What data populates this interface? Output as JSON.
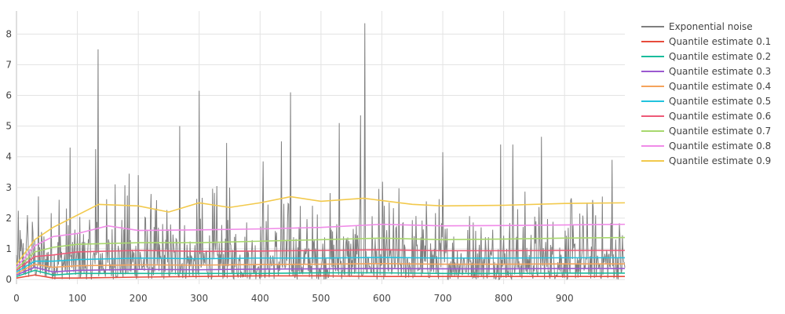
{
  "chart_data": {
    "type": "line",
    "title": "",
    "xlabel": "",
    "ylabel": "",
    "xlim": [
      0,
      999
    ],
    "ylim": [
      -0.15,
      8.75
    ],
    "x_ticks": [
      0,
      100,
      200,
      300,
      400,
      500,
      600,
      700,
      800,
      900
    ],
    "y_ticks": [
      0,
      1,
      2,
      3,
      4,
      5,
      6,
      7,
      8
    ],
    "grid": true,
    "legend_position": "top-right",
    "noise": {
      "name": "Exponential noise",
      "color": "#7f7f7f",
      "n_points": 1000,
      "peaks": [
        {
          "x": 18,
          "y": 2.1
        },
        {
          "x": 70,
          "y": 2.6
        },
        {
          "x": 88,
          "y": 4.3
        },
        {
          "x": 130,
          "y": 4.25
        },
        {
          "x": 134,
          "y": 7.5
        },
        {
          "x": 162,
          "y": 3.1
        },
        {
          "x": 185,
          "y": 3.45
        },
        {
          "x": 200,
          "y": 3.4
        },
        {
          "x": 268,
          "y": 5.0
        },
        {
          "x": 300,
          "y": 6.15
        },
        {
          "x": 345,
          "y": 4.45
        },
        {
          "x": 405,
          "y": 3.85
        },
        {
          "x": 435,
          "y": 4.5
        },
        {
          "x": 450,
          "y": 6.1
        },
        {
          "x": 530,
          "y": 5.1
        },
        {
          "x": 565,
          "y": 5.35
        },
        {
          "x": 572,
          "y": 8.35
        },
        {
          "x": 700,
          "y": 4.15
        },
        {
          "x": 795,
          "y": 4.4
        },
        {
          "x": 815,
          "y": 4.4
        },
        {
          "x": 862,
          "y": 4.65
        },
        {
          "x": 978,
          "y": 3.9
        }
      ]
    },
    "series": [
      {
        "name": "Quantile estimate 0.1",
        "color": "#e74c3c",
        "x": [
          0,
          30,
          60,
          100,
          200,
          300,
          400,
          500,
          600,
          700,
          800,
          900,
          999
        ],
        "y": [
          0.05,
          0.15,
          0.05,
          0.05,
          0.08,
          0.1,
          0.12,
          0.12,
          0.1,
          0.1,
          0.1,
          0.1,
          0.1
        ]
      },
      {
        "name": "Quantile estimate 0.2",
        "color": "#1abc9c",
        "x": [
          0,
          30,
          60,
          100,
          200,
          300,
          400,
          500,
          600,
          700,
          800,
          900,
          999
        ],
        "y": [
          0.1,
          0.3,
          0.15,
          0.2,
          0.2,
          0.2,
          0.2,
          0.22,
          0.22,
          0.2,
          0.2,
          0.21,
          0.21
        ]
      },
      {
        "name": "Quantile estimate 0.3",
        "color": "#9b59d0",
        "x": [
          0,
          30,
          60,
          100,
          200,
          300,
          400,
          500,
          600,
          700,
          800,
          900,
          999
        ],
        "y": [
          0.15,
          0.4,
          0.25,
          0.3,
          0.33,
          0.32,
          0.34,
          0.35,
          0.36,
          0.35,
          0.35,
          0.36,
          0.36
        ]
      },
      {
        "name": "Quantile estimate 0.4",
        "color": "#f5a35c",
        "x": [
          0,
          30,
          60,
          100,
          200,
          300,
          400,
          500,
          600,
          700,
          800,
          900,
          999
        ],
        "y": [
          0.2,
          0.5,
          0.4,
          0.45,
          0.48,
          0.47,
          0.49,
          0.5,
          0.52,
          0.5,
          0.5,
          0.51,
          0.51
        ]
      },
      {
        "name": "Quantile estimate 0.5",
        "color": "#22c3de",
        "x": [
          0,
          30,
          60,
          100,
          200,
          300,
          400,
          500,
          600,
          700,
          800,
          900,
          999
        ],
        "y": [
          0.25,
          0.6,
          0.6,
          0.65,
          0.7,
          0.68,
          0.7,
          0.7,
          0.72,
          0.7,
          0.7,
          0.71,
          0.71
        ]
      },
      {
        "name": "Quantile estimate 0.6",
        "color": "#ee5a78",
        "x": [
          0,
          30,
          60,
          100,
          200,
          300,
          400,
          500,
          600,
          700,
          800,
          900,
          999
        ],
        "y": [
          0.3,
          0.75,
          0.8,
          0.9,
          0.95,
          0.92,
          0.93,
          0.95,
          0.97,
          0.94,
          0.94,
          0.95,
          0.95
        ]
      },
      {
        "name": "Quantile estimate 0.7",
        "color": "#a8d86e",
        "x": [
          0,
          30,
          60,
          100,
          200,
          300,
          400,
          500,
          600,
          700,
          800,
          900,
          999
        ],
        "y": [
          0.35,
          0.9,
          1.05,
          1.15,
          1.2,
          1.2,
          1.25,
          1.3,
          1.35,
          1.3,
          1.32,
          1.35,
          1.37
        ]
      },
      {
        "name": "Quantile estimate 0.8",
        "color": "#f08be8",
        "x": [
          0,
          30,
          60,
          100,
          150,
          200,
          300,
          400,
          500,
          600,
          700,
          800,
          900,
          999
        ],
        "y": [
          0.4,
          1.1,
          1.4,
          1.5,
          1.75,
          1.6,
          1.62,
          1.65,
          1.7,
          1.8,
          1.75,
          1.76,
          1.78,
          1.8
        ]
      },
      {
        "name": "Quantile estimate 0.9",
        "color": "#f2c94c",
        "x": [
          0,
          30,
          60,
          90,
          135,
          200,
          250,
          300,
          350,
          400,
          450,
          500,
          570,
          650,
          700,
          800,
          900,
          999
        ],
        "y": [
          0.5,
          1.3,
          1.7,
          2.0,
          2.45,
          2.4,
          2.2,
          2.5,
          2.35,
          2.5,
          2.7,
          2.55,
          2.65,
          2.45,
          2.4,
          2.42,
          2.48,
          2.5
        ]
      }
    ]
  }
}
